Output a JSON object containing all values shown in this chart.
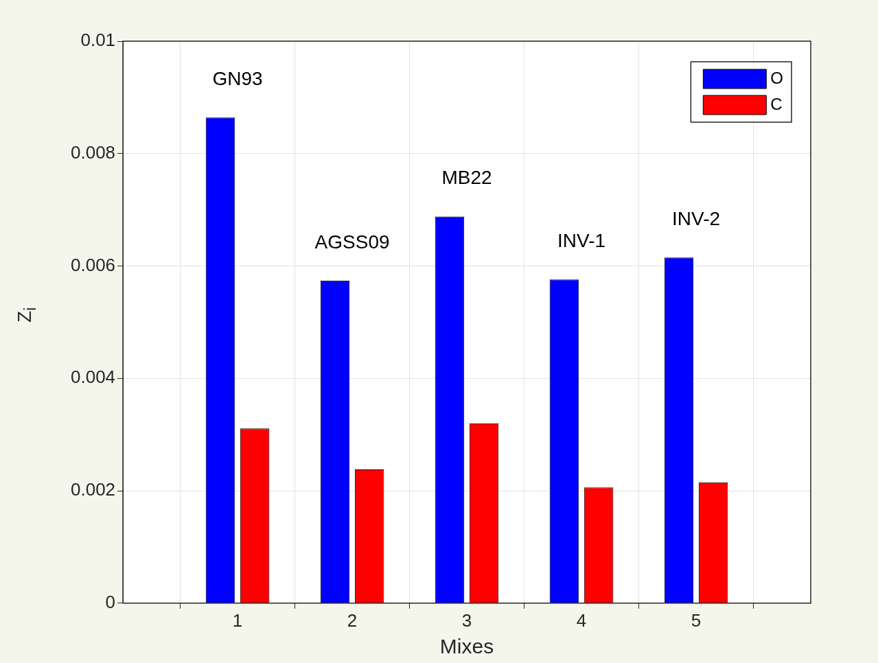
{
  "chart_data": {
    "type": "bar",
    "xlabel": "Mixes",
    "ylabel": "Z$_{i}$",
    "x": [
      1,
      2,
      3,
      4,
      5
    ],
    "xlim": [
      0,
      6
    ],
    "xticks": [
      1,
      2,
      3,
      4,
      5
    ],
    "ylim": [
      0,
      0.01
    ],
    "yticks": [
      0,
      0.002,
      0.004,
      0.006,
      0.008,
      0.01
    ],
    "series": [
      {
        "name": "O",
        "color": "#0000ff",
        "values": [
          0.00864,
          0.00574,
          0.00688,
          0.00576,
          0.00615
        ]
      },
      {
        "name": "C",
        "color": "#ff0000",
        "values": [
          0.00311,
          0.00238,
          0.0032,
          0.00206,
          0.00215
        ]
      }
    ],
    "annotations": [
      "GN93",
      "AGSS09",
      "MB22",
      "INV-1",
      "INV-2"
    ],
    "grid": true,
    "legend": "top right"
  }
}
